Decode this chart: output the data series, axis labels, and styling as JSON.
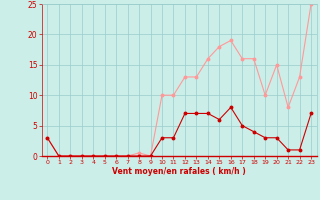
{
  "x": [
    0,
    1,
    2,
    3,
    4,
    5,
    6,
    7,
    8,
    9,
    10,
    11,
    12,
    13,
    14,
    15,
    16,
    17,
    18,
    19,
    20,
    21,
    22,
    23
  ],
  "y_mean": [
    3,
    0,
    0,
    0,
    0,
    0,
    0,
    0,
    0,
    0,
    3,
    3,
    7,
    7,
    7,
    6,
    8,
    5,
    4,
    3,
    3,
    1,
    1,
    7
  ],
  "y_gust": [
    3,
    0,
    0,
    0,
    0,
    0,
    0,
    0,
    0.5,
    0,
    10,
    10,
    13,
    13,
    16,
    18,
    19,
    16,
    16,
    10,
    15,
    8,
    13,
    25
  ],
  "mean_color": "#cc0000",
  "gust_color": "#ff9999",
  "bg_color": "#cceee8",
  "grid_color": "#99cccc",
  "xlabel": "Vent moyen/en rafales ( km/h )",
  "xlim_left": -0.5,
  "xlim_right": 23.5,
  "ylim": [
    0,
    25
  ],
  "yticks": [
    0,
    5,
    10,
    15,
    20,
    25
  ],
  "xticks": [
    0,
    1,
    2,
    3,
    4,
    5,
    6,
    7,
    8,
    9,
    10,
    11,
    12,
    13,
    14,
    15,
    16,
    17,
    18,
    19,
    20,
    21,
    22,
    23
  ]
}
